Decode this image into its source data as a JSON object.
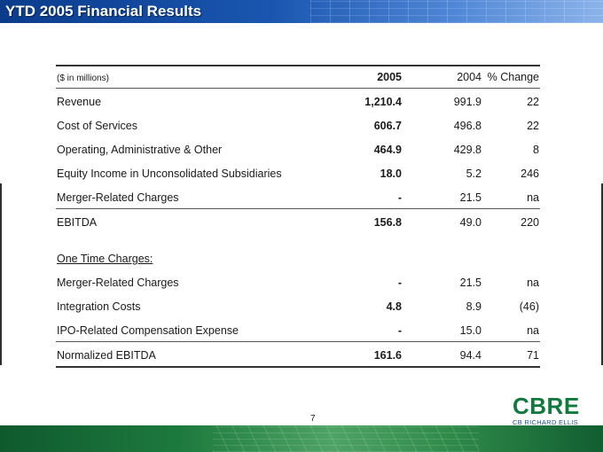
{
  "header": {
    "title": "YTD 2005 Financial Results"
  },
  "table": {
    "columns": {
      "units": "($ in millions)",
      "y2005": "2005",
      "y2004": "2004",
      "change": "% Change"
    },
    "rows": [
      {
        "label": "Revenue",
        "y2005": "1,210.4",
        "y2004": "991.9",
        "change": "22"
      },
      {
        "label": "Cost of Services",
        "y2005": "606.7",
        "y2004": "496.8",
        "change": "22"
      },
      {
        "label": "Operating, Administrative & Other",
        "y2005": "464.9",
        "y2004": "429.8",
        "change": "8"
      },
      {
        "label": "Equity Income in Unconsolidated Subsidiaries",
        "y2005": "18.0",
        "y2004": "5.2",
        "change": "246"
      },
      {
        "label": "Merger-Related Charges",
        "y2005": "-",
        "y2004": "21.5",
        "change": "na"
      }
    ],
    "ebitda": {
      "label": "EBITDA",
      "y2005": "156.8",
      "y2004": "49.0",
      "change": "220"
    },
    "one_time_heading": "One Time Charges:",
    "one_time_rows": [
      {
        "label": "Merger-Related Charges",
        "y2005": "-",
        "y2004": "21.5",
        "change": "na"
      },
      {
        "label": "Integration Costs",
        "y2005": "4.8",
        "y2004": "8.9",
        "change": "(46)"
      },
      {
        "label": "IPO-Related Compensation Expense",
        "y2005": "-",
        "y2004": "15.0",
        "change": "na"
      }
    ],
    "normalized": {
      "label": "Normalized EBITDA",
      "y2005": "161.6",
      "y2004": "94.4",
      "change": "71"
    }
  },
  "footer": {
    "page_number": "7",
    "logo_mark": "CBRE",
    "logo_sub": "CB RICHARD ELLIS",
    "logo_color": "#0e7a3c"
  }
}
